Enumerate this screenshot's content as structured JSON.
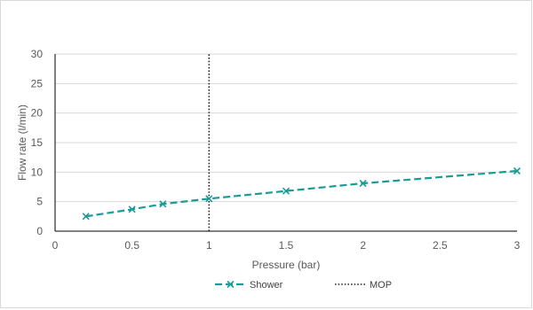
{
  "chart_data": {
    "type": "line",
    "title": "",
    "xlabel": "Pressure (bar)",
    "ylabel": "Flow rate (l/min)",
    "xlim": [
      0,
      3
    ],
    "ylim": [
      0,
      30
    ],
    "x_ticks": [
      "0",
      "0.5",
      "1",
      "1.5",
      "2",
      "2.5",
      "3"
    ],
    "y_ticks": [
      "0",
      "5",
      "10",
      "15",
      "20",
      "25",
      "30"
    ],
    "grid": "horizontal",
    "legend_position": "bottom",
    "series": [
      {
        "name": "Shower",
        "style": "dashed-with-x-markers",
        "color": "#1a9c96",
        "x": [
          0.2,
          0.5,
          0.7,
          1.0,
          1.5,
          2.0,
          3.0
        ],
        "y": [
          2.5,
          3.7,
          4.6,
          5.5,
          6.8,
          8.1,
          10.2
        ]
      },
      {
        "name": "MOP",
        "style": "dotted-vertical",
        "color": "#262626",
        "x": [
          1.0,
          1.0
        ],
        "y": [
          0,
          30
        ]
      }
    ]
  }
}
